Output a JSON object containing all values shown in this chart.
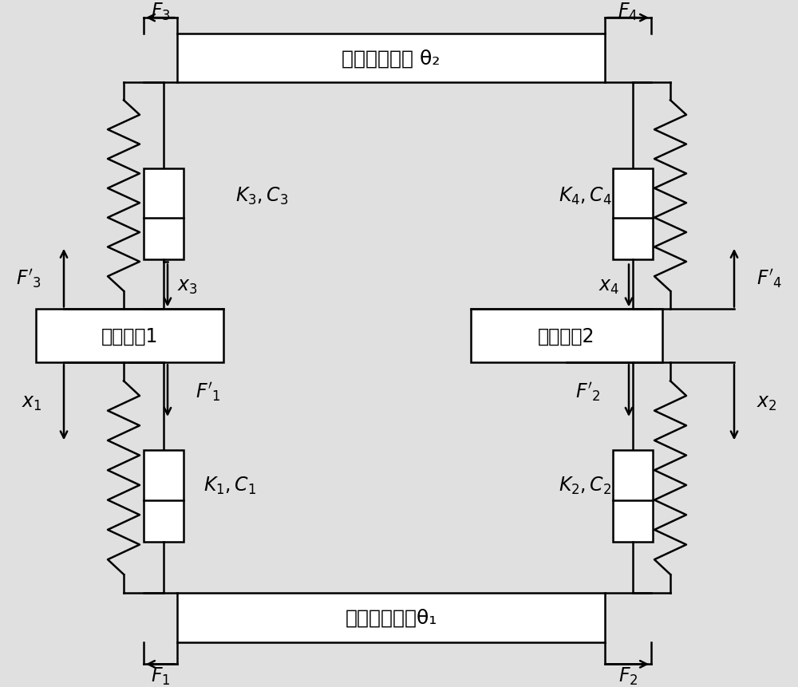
{
  "bg_color": "#e0e0e0",
  "line_color": "#000000",
  "box_color": "#ffffff",
  "figsize": [
    10.0,
    8.62
  ],
  "dpi": 100,
  "top_box_label": "关节输出法兰 θ₂",
  "bottom_box_label": "齿轮头输出轴θ₁",
  "left_box_label": "动滑轮组1",
  "right_box_label": "动滑轮组2",
  "lw": 1.8
}
